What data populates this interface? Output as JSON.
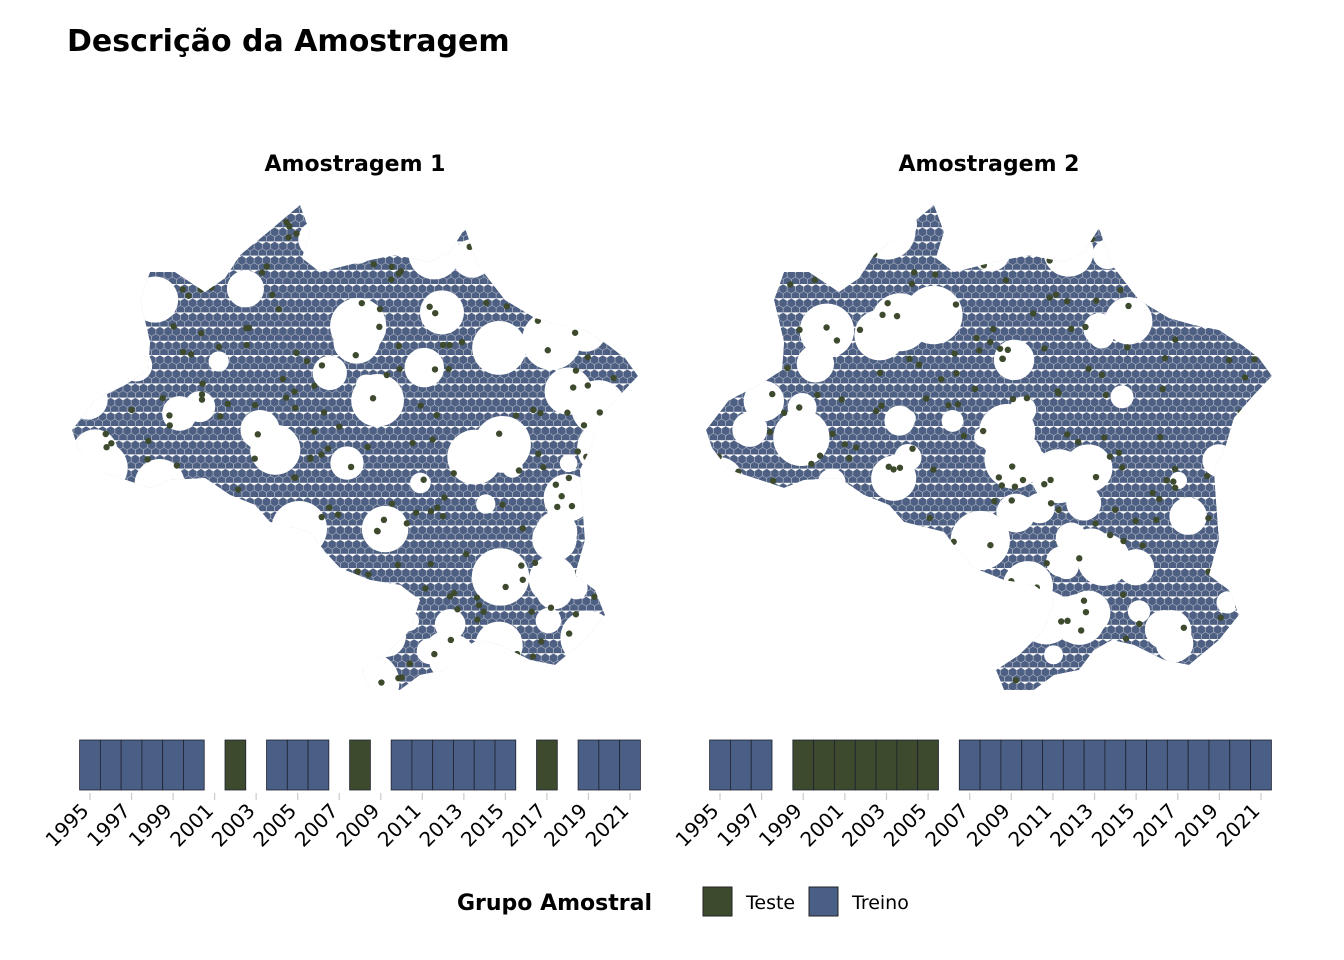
{
  "title": "Descrição da Amostragem",
  "legend": {
    "title": "Grupo Amostral",
    "position": "bottom",
    "items": [
      {
        "label": "Teste",
        "color": "#3d4a2d"
      },
      {
        "label": "Treino",
        "color": "#4a5f85"
      }
    ]
  },
  "chart_data": [
    {
      "type": "map",
      "title": "Amostragem 1",
      "description_values": {
        "groups": [
          "Teste",
          "Treino"
        ],
        "years_range": [
          1995,
          2021
        ]
      },
      "x_tick_labels": [
        "1995",
        "1997",
        "1999",
        "2001",
        "2003",
        "2005",
        "2007",
        "2009",
        "2011",
        "2013",
        "2015",
        "2017",
        "2019",
        "2021"
      ],
      "years": [
        {
          "year": 1995,
          "group": "Treino"
        },
        {
          "year": 1996,
          "group": "Treino"
        },
        {
          "year": 1997,
          "group": "Treino"
        },
        {
          "year": 1998,
          "group": "Treino"
        },
        {
          "year": 1999,
          "group": "Treino"
        },
        {
          "year": 2000,
          "group": "Treino"
        },
        {
          "year": 2002,
          "group": "Teste"
        },
        {
          "year": 2004,
          "group": "Treino"
        },
        {
          "year": 2005,
          "group": "Treino"
        },
        {
          "year": 2006,
          "group": "Treino"
        },
        {
          "year": 2008,
          "group": "Teste"
        },
        {
          "year": 2010,
          "group": "Treino"
        },
        {
          "year": 2011,
          "group": "Treino"
        },
        {
          "year": 2012,
          "group": "Treino"
        },
        {
          "year": 2013,
          "group": "Treino"
        },
        {
          "year": 2014,
          "group": "Treino"
        },
        {
          "year": 2015,
          "group": "Treino"
        },
        {
          "year": 2017,
          "group": "Teste"
        },
        {
          "year": 2019,
          "group": "Treino"
        },
        {
          "year": 2020,
          "group": "Treino"
        },
        {
          "year": 2021,
          "group": "Treino"
        }
      ]
    },
    {
      "type": "map",
      "title": "Amostragem 2",
      "x_tick_labels": [
        "1995",
        "1997",
        "1999",
        "2001",
        "2003",
        "2005",
        "2007",
        "2009",
        "2011",
        "2013",
        "2015",
        "2017",
        "2019",
        "2021"
      ],
      "years": [
        {
          "year": 1995,
          "group": "Treino"
        },
        {
          "year": 1996,
          "group": "Treino"
        },
        {
          "year": 1997,
          "group": "Treino"
        },
        {
          "year": 1999,
          "group": "Teste"
        },
        {
          "year": 2000,
          "group": "Teste"
        },
        {
          "year": 2001,
          "group": "Teste"
        },
        {
          "year": 2002,
          "group": "Teste"
        },
        {
          "year": 2003,
          "group": "Teste"
        },
        {
          "year": 2004,
          "group": "Teste"
        },
        {
          "year": 2005,
          "group": "Teste"
        },
        {
          "year": 2007,
          "group": "Treino"
        },
        {
          "year": 2008,
          "group": "Treino"
        },
        {
          "year": 2009,
          "group": "Treino"
        },
        {
          "year": 2010,
          "group": "Treino"
        },
        {
          "year": 2011,
          "group": "Treino"
        },
        {
          "year": 2012,
          "group": "Treino"
        },
        {
          "year": 2013,
          "group": "Treino"
        },
        {
          "year": 2014,
          "group": "Treino"
        },
        {
          "year": 2015,
          "group": "Treino"
        },
        {
          "year": 2016,
          "group": "Treino"
        },
        {
          "year": 2017,
          "group": "Treino"
        },
        {
          "year": 2018,
          "group": "Treino"
        },
        {
          "year": 2019,
          "group": "Treino"
        },
        {
          "year": 2020,
          "group": "Treino"
        },
        {
          "year": 2021,
          "group": "Treino"
        }
      ]
    }
  ]
}
